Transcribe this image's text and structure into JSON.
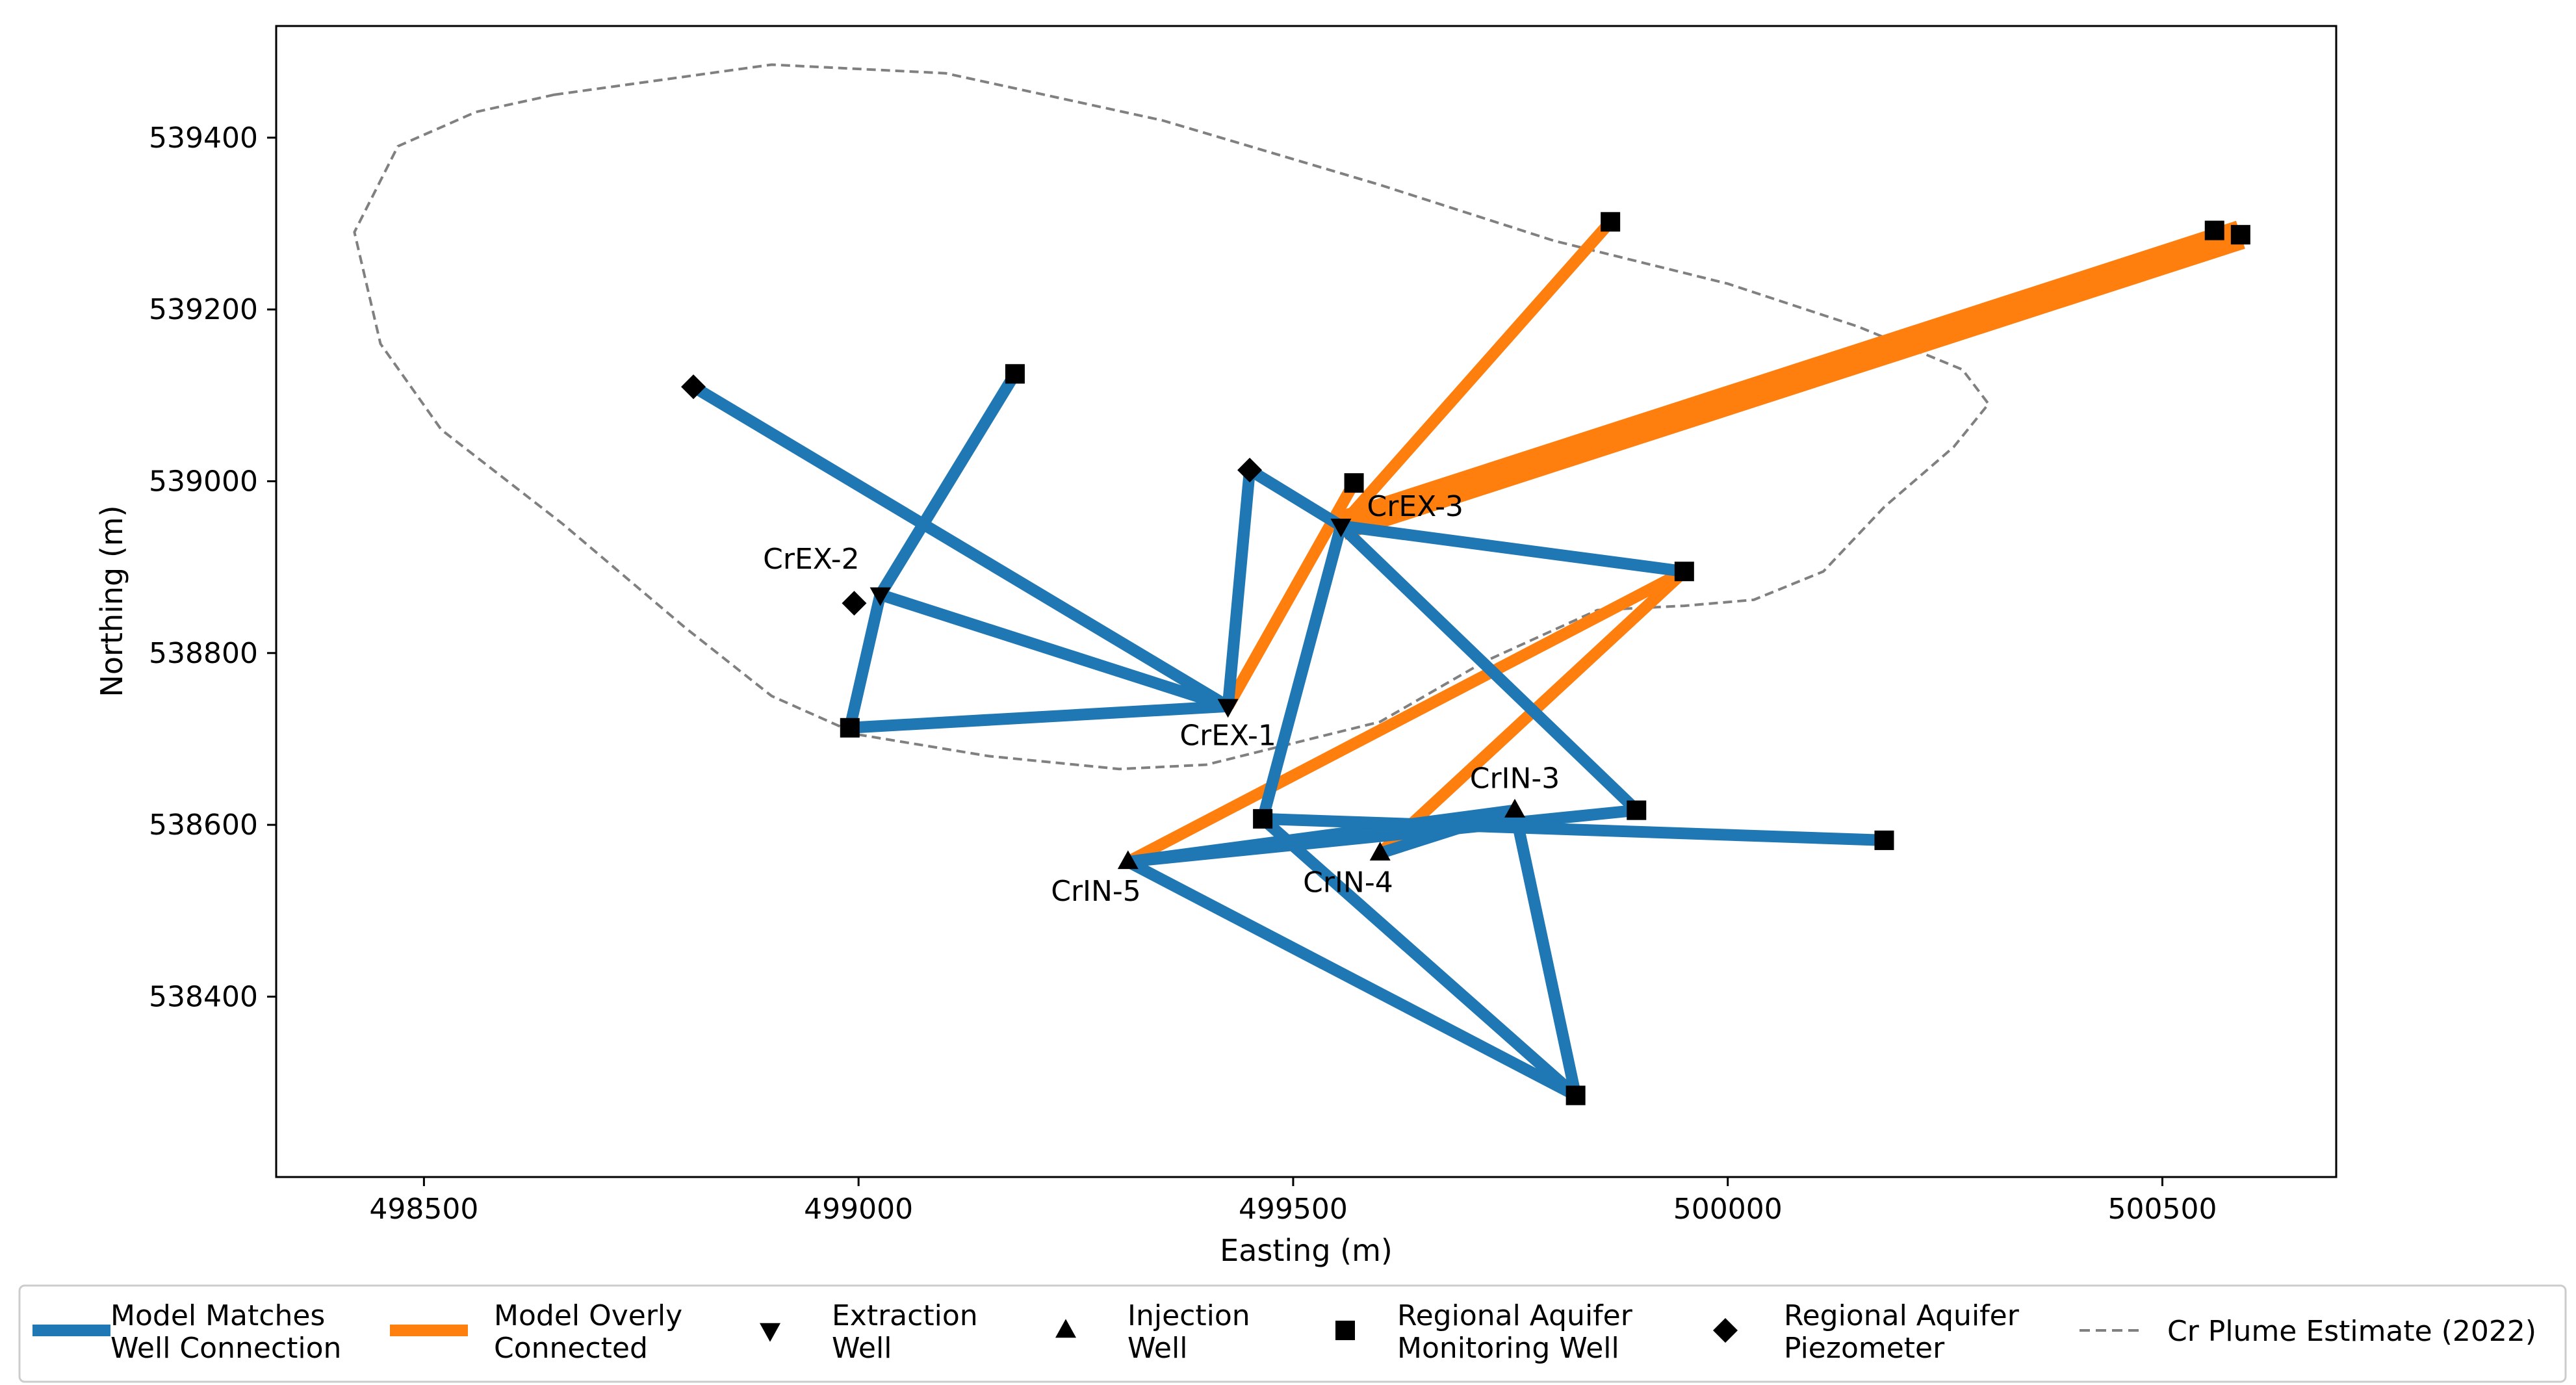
{
  "chart_data": {
    "type": "scatter",
    "title": "",
    "xlabel": "Easting (m)",
    "ylabel": "Northing (m)",
    "xlim": [
      498330,
      500700
    ],
    "ylim": [
      538190,
      539530
    ],
    "xticks": [
      498500,
      499000,
      499500,
      500000,
      500500
    ],
    "yticks": [
      538400,
      538600,
      538800,
      539000,
      539200,
      539400
    ],
    "colors": {
      "matches": "#1f77b4",
      "overly": "#ff7f0e",
      "plume": "#808080",
      "marker": "#000000"
    },
    "wells": [
      {
        "id": "CrEX-1",
        "type": "extraction",
        "x": 499425,
        "y": 538738,
        "label": "CrEX-1",
        "label_pos": "below"
      },
      {
        "id": "CrEX-2",
        "type": "extraction",
        "x": 499025,
        "y": 538868,
        "label": "CrEX-2",
        "label_pos": "above-left"
      },
      {
        "id": "CrEX-3",
        "type": "extraction",
        "x": 499555,
        "y": 538948,
        "label": "CrEX-3",
        "label_pos": "right"
      },
      {
        "id": "CrIN-3",
        "type": "injection",
        "x": 499755,
        "y": 538617,
        "label": "CrIN-3",
        "label_pos": "above"
      },
      {
        "id": "CrIN-4",
        "type": "injection",
        "x": 499600,
        "y": 538567,
        "label": "CrIN-4",
        "label_pos": "below-left"
      },
      {
        "id": "CrIN-5",
        "type": "injection",
        "x": 499310,
        "y": 538557,
        "label": "CrIN-5",
        "label_pos": "below-left"
      },
      {
        "id": "R1",
        "type": "monitoring",
        "x": 499180,
        "y": 539125,
        "label": "",
        "label_pos": ""
      },
      {
        "id": "R2",
        "type": "monitoring",
        "x": 498990,
        "y": 538713,
        "label": "",
        "label_pos": ""
      },
      {
        "id": "R3",
        "type": "monitoring",
        "x": 499570,
        "y": 538998,
        "label": "",
        "label_pos": ""
      },
      {
        "id": "R4",
        "type": "monitoring",
        "x": 499865,
        "y": 539302,
        "label": "",
        "label_pos": ""
      },
      {
        "id": "R5",
        "type": "monitoring",
        "x": 500560,
        "y": 539292,
        "label": "",
        "label_pos": ""
      },
      {
        "id": "R6",
        "type": "monitoring",
        "x": 500590,
        "y": 539287,
        "label": "",
        "label_pos": ""
      },
      {
        "id": "R7",
        "type": "monitoring",
        "x": 499950,
        "y": 538895,
        "label": "",
        "label_pos": ""
      },
      {
        "id": "R8",
        "type": "monitoring",
        "x": 499465,
        "y": 538607,
        "label": "",
        "label_pos": ""
      },
      {
        "id": "R9",
        "type": "monitoring",
        "x": 499895,
        "y": 538617,
        "label": "",
        "label_pos": ""
      },
      {
        "id": "R10",
        "type": "monitoring",
        "x": 500180,
        "y": 538582,
        "label": "",
        "label_pos": ""
      },
      {
        "id": "R11",
        "type": "monitoring",
        "x": 499825,
        "y": 538285,
        "label": "",
        "label_pos": ""
      },
      {
        "id": "P1",
        "type": "piezometer",
        "x": 498810,
        "y": 539110,
        "label": "",
        "label_pos": ""
      },
      {
        "id": "P2",
        "type": "piezometer",
        "x": 499450,
        "y": 539013,
        "label": "",
        "label_pos": ""
      },
      {
        "id": "P3",
        "type": "piezometer",
        "x": 498995,
        "y": 538858,
        "label": "",
        "label_pos": ""
      }
    ],
    "connections": [
      {
        "from": "CrEX-1",
        "to": "P1",
        "status": "matches",
        "weight": 1
      },
      {
        "from": "CrEX-1",
        "to": "CrEX-2",
        "status": "matches",
        "weight": 1
      },
      {
        "from": "CrEX-1",
        "to": "R2",
        "status": "matches",
        "weight": 1
      },
      {
        "from": "CrEX-1",
        "to": "P2",
        "status": "matches",
        "weight": 1
      },
      {
        "from": "CrEX-1",
        "to": "R3",
        "status": "overly",
        "weight": 1
      },
      {
        "from": "CrEX-2",
        "to": "R1",
        "status": "matches",
        "weight": 1
      },
      {
        "from": "CrEX-2",
        "to": "R2",
        "status": "matches",
        "weight": 1
      },
      {
        "from": "CrEX-3",
        "to": "R4",
        "status": "overly",
        "weight": 1
      },
      {
        "from": "CrEX-3",
        "to": "R6",
        "status": "overly",
        "weight": 2.5
      },
      {
        "from": "CrEX-3",
        "to": "P2",
        "status": "matches",
        "weight": 1
      },
      {
        "from": "CrEX-3",
        "to": "R7",
        "status": "matches",
        "weight": 1
      },
      {
        "from": "CrEX-3",
        "to": "R8",
        "status": "matches",
        "weight": 1
      },
      {
        "from": "CrEX-3",
        "to": "R9",
        "status": "matches",
        "weight": 1
      },
      {
        "from": "CrIN-5",
        "to": "R7",
        "status": "overly",
        "weight": 1
      },
      {
        "from": "CrIN-4",
        "to": "R7",
        "status": "overly",
        "weight": 1
      },
      {
        "from": "CrIN-5",
        "to": "CrIN-3",
        "status": "matches",
        "weight": 1
      },
      {
        "from": "CrIN-5",
        "to": "R9",
        "status": "matches",
        "weight": 1
      },
      {
        "from": "CrIN-5",
        "to": "R11",
        "status": "matches",
        "weight": 1
      },
      {
        "from": "R8",
        "to": "R10",
        "status": "matches",
        "weight": 1
      },
      {
        "from": "R8",
        "to": "R11",
        "status": "matches",
        "weight": 1
      },
      {
        "from": "CrIN-3",
        "to": "R11",
        "status": "matches",
        "weight": 1
      },
      {
        "from": "CrIN-4",
        "to": "CrIN-3",
        "status": "matches",
        "weight": 1
      }
    ],
    "plume": {
      "label": "Cr Plume Estimate (2022)",
      "points": [
        [
          498650,
          539450
        ],
        [
          498900,
          539485
        ],
        [
          499100,
          539475
        ],
        [
          499350,
          539420
        ],
        [
          499600,
          539345
        ],
        [
          499800,
          539280
        ],
        [
          500000,
          539230
        ],
        [
          500150,
          539180
        ],
        [
          500270,
          539130
        ],
        [
          500300,
          539090
        ],
        [
          500260,
          539040
        ],
        [
          500180,
          538970
        ],
        [
          500110,
          538895
        ],
        [
          500030,
          538862
        ],
        [
          499950,
          538855
        ],
        [
          499850,
          538850
        ],
        [
          499720,
          538790
        ],
        [
          499600,
          538720
        ],
        [
          499480,
          538690
        ],
        [
          499400,
          538670
        ],
        [
          499300,
          538665
        ],
        [
          499150,
          538680
        ],
        [
          499000,
          538705
        ],
        [
          498900,
          538750
        ],
        [
          498800,
          538830
        ],
        [
          498660,
          538950
        ],
        [
          498520,
          539060
        ],
        [
          498450,
          539160
        ],
        [
          498420,
          539290
        ],
        [
          498470,
          539390
        ],
        [
          498560,
          539430
        ]
      ]
    },
    "legend": [
      {
        "kind": "line",
        "color_key": "matches",
        "line1": "Model Matches",
        "line2": "Well Connection"
      },
      {
        "kind": "line",
        "color_key": "overly",
        "line1": "Model Overly",
        "line2": "Connected"
      },
      {
        "kind": "extraction",
        "line1": "Extraction",
        "line2": "Well"
      },
      {
        "kind": "injection",
        "line1": "Injection",
        "line2": "Well"
      },
      {
        "kind": "monitoring",
        "line1": "Regional Aquifer",
        "line2": "Monitoring Well"
      },
      {
        "kind": "piezometer",
        "line1": "Regional Aquifer",
        "line2": "Piezometer"
      },
      {
        "kind": "dashed",
        "color_key": "plume",
        "line1": "Cr Plume Estimate (2022)",
        "line2": ""
      }
    ],
    "legend_position": "bottom"
  }
}
